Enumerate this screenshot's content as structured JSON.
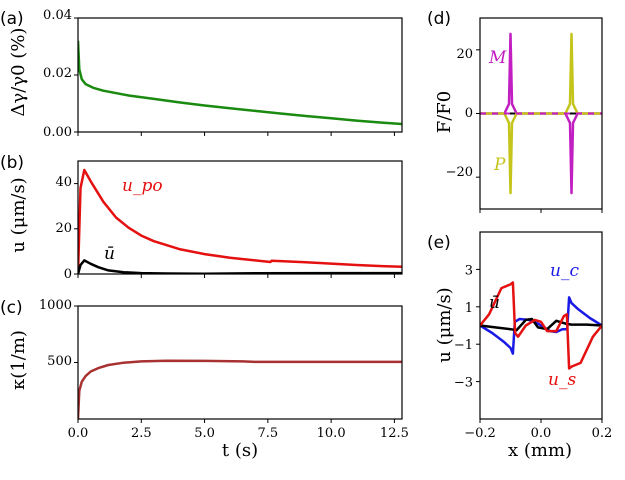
{
  "chart_data": [
    {
      "panel": "(a)",
      "type": "line",
      "ylabel": "Δγ/γ0 (%)",
      "ylim": [
        0,
        0.04
      ],
      "yticks": [
        "0.00",
        "0.02",
        "0.04"
      ],
      "xlim": [
        0,
        12.8
      ],
      "series": [
        {
          "name": "Δγ/γ0",
          "color": "#1a8a10",
          "x": [
            0.0,
            0.05,
            0.15,
            0.3,
            0.6,
            1,
            2,
            3,
            4,
            5,
            6,
            7,
            8,
            9,
            10,
            11,
            12,
            12.8
          ],
          "y": [
            0.032,
            0.022,
            0.0185,
            0.0168,
            0.0155,
            0.0145,
            0.0128,
            0.0116,
            0.0104,
            0.0093,
            0.0083,
            0.0074,
            0.0065,
            0.0056,
            0.0048,
            0.004,
            0.0033,
            0.0028
          ]
        }
      ]
    },
    {
      "panel": "(b)",
      "type": "line",
      "ylabel": "u (μm/s)",
      "ylim": [
        0,
        50
      ],
      "yticks": [
        "0",
        "20",
        "40"
      ],
      "xlim": [
        0,
        12.8
      ],
      "annotations": [
        "u_po",
        "ū"
      ],
      "series": [
        {
          "name": "u_po",
          "color": "#e51010",
          "x": [
            0.0,
            0.1,
            0.25,
            0.5,
            1,
            1.5,
            2,
            2.5,
            3,
            4,
            5,
            6,
            7,
            7.6,
            7.65,
            8,
            9,
            10,
            11,
            12,
            12.8
          ],
          "y": [
            0,
            38,
            46,
            41,
            32,
            25,
            20.5,
            17,
            14.5,
            11,
            8.8,
            7.2,
            6,
            5.3,
            5.9,
            5.7,
            5.2,
            4.6,
            4.0,
            3.5,
            3.2
          ]
        },
        {
          "name": "ū",
          "color": "#000000",
          "x": [
            0.0,
            0.1,
            0.25,
            0.5,
            0.8,
            1.2,
            1.8,
            2.5,
            3.5,
            5,
            7,
            10,
            12.8
          ],
          "y": [
            0,
            4,
            6,
            4.5,
            3,
            1.6,
            0.8,
            0.4,
            0.2,
            0.1,
            0.3,
            0.4,
            0.4
          ]
        }
      ]
    },
    {
      "panel": "(c)",
      "type": "line",
      "ylabel": "κ(1/m)",
      "ylim": [
        0,
        1000
      ],
      "yticks": [
        "500",
        "1000"
      ],
      "xlim": [
        0,
        12.8
      ],
      "xlabel": "t (s)",
      "xticks": [
        "0.0",
        "2.5",
        "5.0",
        "7.5",
        "10.0",
        "12.5"
      ],
      "xtick_values": [
        0,
        2.5,
        5,
        7.5,
        10,
        12.5
      ],
      "series": [
        {
          "name": "κ",
          "color": "#a83232",
          "x": [
            0.0,
            0.05,
            0.15,
            0.3,
            0.5,
            0.8,
            1.2,
            1.8,
            2.5,
            3.5,
            5,
            6.5,
            7,
            9,
            11,
            12.8
          ],
          "y": [
            0,
            250,
            330,
            380,
            420,
            450,
            478,
            498,
            510,
            515,
            514,
            510,
            505,
            505,
            505,
            505
          ]
        }
      ]
    },
    {
      "panel": "(d)",
      "type": "line",
      "ylabel": "F/F0",
      "ylim": [
        -30,
        30
      ],
      "yticks": [
        "20",
        "0",
        "−20"
      ],
      "xlim": [
        -0.2,
        0.2
      ],
      "annotations": [
        "M",
        "P"
      ],
      "series": [
        {
          "name": "M",
          "color": "#c21fc2",
          "x": [
            -0.2,
            -0.12,
            -0.105,
            -0.1,
            -0.095,
            -0.08,
            0.08,
            0.095,
            0.1,
            0.105,
            0.12,
            0.2
          ],
          "y": [
            0,
            0,
            3,
            25,
            3,
            0,
            0,
            -3,
            -25,
            -3,
            0,
            0
          ]
        },
        {
          "name": "P",
          "color": "#c4c41a",
          "x": [
            -0.2,
            -0.12,
            -0.105,
            -0.1,
            -0.095,
            -0.08,
            0.08,
            0.095,
            0.1,
            0.105,
            0.12,
            0.2
          ],
          "y": [
            0,
            0,
            -3,
            -25,
            -3,
            0,
            0,
            3,
            25,
            3,
            0,
            0
          ]
        }
      ]
    },
    {
      "panel": "(e)",
      "type": "line",
      "ylabel": "u (μm/s)",
      "xlabel": "x (mm)",
      "ylim": [
        -5,
        5
      ],
      "yticks": [
        "3",
        "1",
        "−1",
        "−3"
      ],
      "ytick_values": [
        3,
        1,
        -1,
        -3
      ],
      "xlim": [
        -0.2,
        0.2
      ],
      "xticks": [
        "−0.2",
        "0.0",
        "0.2"
      ],
      "xtick_values": [
        -0.2,
        0,
        0.2
      ],
      "annotations": [
        "u_c",
        "ū",
        "u_s"
      ],
      "series": [
        {
          "name": "u_c",
          "color": "#1a1ae6",
          "x": [
            -0.2,
            -0.16,
            -0.12,
            -0.1,
            -0.092,
            -0.086,
            -0.07,
            -0.04,
            -0.01,
            0.01,
            0.03,
            0.05,
            0.07,
            0.086,
            0.092,
            0.1,
            0.12,
            0.16,
            0.2
          ],
          "y": [
            0,
            -0.4,
            -0.9,
            -1.2,
            -1.5,
            0.2,
            0.35,
            0.3,
            0.1,
            -0.1,
            -0.3,
            -0.35,
            -0.2,
            -0.2,
            1.5,
            1.2,
            0.9,
            0.4,
            0
          ]
        },
        {
          "name": "ū",
          "color": "#000000",
          "x": [
            -0.2,
            -0.15,
            -0.1,
            -0.08,
            -0.05,
            -0.03,
            -0.01,
            0.02,
            0.05,
            0.08,
            0.1,
            0.15,
            0.2
          ],
          "y": [
            0,
            -0.1,
            -0.2,
            -0.25,
            0.3,
            0.35,
            -0.1,
            -0.2,
            0.25,
            0.1,
            0.05,
            0.05,
            0
          ]
        },
        {
          "name": "u_s",
          "color": "#e51010",
          "x": [
            -0.2,
            -0.17,
            -0.13,
            -0.1,
            -0.092,
            -0.085,
            -0.075,
            -0.05,
            -0.02,
            0,
            0.02,
            0.05,
            0.075,
            0.085,
            0.092,
            0.1,
            0.13,
            0.17,
            0.2
          ],
          "y": [
            0,
            0.6,
            2.0,
            2.2,
            2.3,
            -0.4,
            -0.6,
            0.0,
            0.3,
            0.2,
            -0.3,
            -0.3,
            0.5,
            0.6,
            -2.3,
            -2.2,
            -2.0,
            -0.6,
            0
          ]
        }
      ]
    }
  ]
}
